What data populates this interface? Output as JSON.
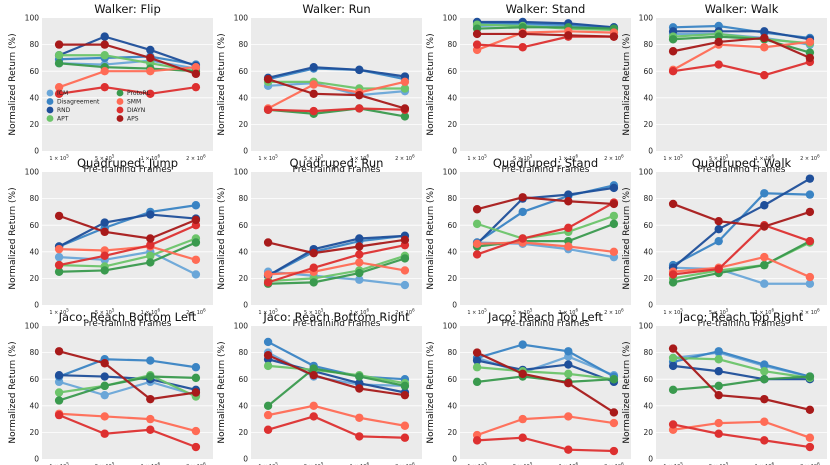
{
  "figure": {
    "legend": [
      "ICM",
      "Disagreement",
      "RND",
      "APT",
      "ProtoRL",
      "SMM",
      "DIAYN",
      "APS"
    ],
    "legend_placement": "lower-left of first panel"
  },
  "chart_data": [
    {
      "type": "line",
      "title": "Walker: Flip",
      "xlabel": "Pre-training Frames",
      "ylabel": "Normalized Return (%)",
      "categories": [
        "1 × 10^5",
        "5 × 10^5",
        "1 × 10^6",
        "2 × 10^6"
      ],
      "ylim": [
        0,
        100
      ],
      "grid": true,
      "series": [
        {
          "name": "ICM",
          "values": [
            66,
            65,
            68,
            62
          ]
        },
        {
          "name": "Disagreement",
          "values": [
            69,
            70,
            71,
            65
          ]
        },
        {
          "name": "RND",
          "values": [
            72,
            86,
            76,
            64
          ]
        },
        {
          "name": "APT",
          "values": [
            72,
            72,
            66,
            60
          ]
        },
        {
          "name": "ProtoRL",
          "values": [
            66,
            63,
            62,
            60
          ]
        },
        {
          "name": "SMM",
          "values": [
            48,
            60,
            60,
            63
          ]
        },
        {
          "name": "DIAYN",
          "values": [
            43,
            48,
            43,
            48
          ]
        },
        {
          "name": "APS",
          "values": [
            80,
            80,
            70,
            58
          ]
        }
      ]
    },
    {
      "type": "line",
      "title": "Walker: Run",
      "xlabel": "Pre-training Frames",
      "ylabel": "Normalized Return (%)",
      "categories": [
        "1 × 10^5",
        "5 × 10^5",
        "1 × 10^6",
        "2 × 10^6"
      ],
      "ylim": [
        0,
        100
      ],
      "grid": true,
      "series": [
        {
          "name": "ICM",
          "values": [
            49,
            51,
            42,
            45
          ]
        },
        {
          "name": "Disagreement",
          "values": [
            54,
            62,
            61,
            54
          ]
        },
        {
          "name": "RND",
          "values": [
            55,
            63,
            61,
            56
          ]
        },
        {
          "name": "APT",
          "values": [
            52,
            52,
            47,
            47
          ]
        },
        {
          "name": "ProtoRL",
          "values": [
            31,
            28,
            32,
            26
          ]
        },
        {
          "name": "SMM",
          "values": [
            32,
            50,
            44,
            52
          ]
        },
        {
          "name": "DIAYN",
          "values": [
            31,
            30,
            32,
            31
          ]
        },
        {
          "name": "APS",
          "values": [
            54,
            43,
            42,
            32
          ]
        }
      ]
    },
    {
      "type": "line",
      "title": "Walker: Stand",
      "xlabel": "Pre-training Frames",
      "ylabel": "Normalized Return (%)",
      "categories": [
        "1 × 10^5",
        "5 × 10^5",
        "1 × 10^6",
        "2 × 10^6"
      ],
      "ylim": [
        0,
        100
      ],
      "grid": true,
      "series": [
        {
          "name": "ICM",
          "values": [
            94,
            95,
            94,
            92
          ]
        },
        {
          "name": "Disagreement",
          "values": [
            96,
            96,
            95,
            93
          ]
        },
        {
          "name": "RND",
          "values": [
            97,
            97,
            96,
            93
          ]
        },
        {
          "name": "APT",
          "values": [
            95,
            94,
            92,
            91
          ]
        },
        {
          "name": "ProtoRL",
          "values": [
            92,
            93,
            93,
            92
          ]
        },
        {
          "name": "SMM",
          "values": [
            76,
            89,
            90,
            89
          ]
        },
        {
          "name": "DIAYN",
          "values": [
            80,
            78,
            86,
            86
          ]
        },
        {
          "name": "APS",
          "values": [
            88,
            88,
            87,
            86
          ]
        }
      ]
    },
    {
      "type": "line",
      "title": "Walker: Walk",
      "xlabel": "Pre-training Frames",
      "ylabel": "Normalized Return (%)",
      "categories": [
        "1 × 10^5",
        "5 × 10^5",
        "1 × 10^6",
        "2 × 10^6"
      ],
      "ylim": [
        0,
        100
      ],
      "grid": true,
      "series": [
        {
          "name": "ICM",
          "values": [
            88,
            88,
            85,
            80
          ]
        },
        {
          "name": "Disagreement",
          "values": [
            93,
            94,
            89,
            85
          ]
        },
        {
          "name": "RND",
          "values": [
            90,
            90,
            90,
            84
          ]
        },
        {
          "name": "APT",
          "values": [
            86,
            88,
            84,
            81
          ]
        },
        {
          "name": "ProtoRL",
          "values": [
            84,
            86,
            84,
            74
          ]
        },
        {
          "name": "SMM",
          "values": [
            61,
            80,
            78,
            82
          ]
        },
        {
          "name": "DIAYN",
          "values": [
            60,
            65,
            57,
            67
          ]
        },
        {
          "name": "APS",
          "values": [
            75,
            82,
            85,
            70
          ]
        }
      ]
    },
    {
      "type": "line",
      "title": "Quadruped: Jump",
      "xlabel": "Pre-training Frames",
      "ylabel": "Normalized Return (%)",
      "categories": [
        "1 × 10^5",
        "5 × 10^5",
        "1 × 10^6",
        "2 × 10^6"
      ],
      "ylim": [
        0,
        100
      ],
      "grid": true,
      "series": [
        {
          "name": "ICM",
          "values": [
            36,
            34,
            40,
            23
          ]
        },
        {
          "name": "Disagreement",
          "values": [
            44,
            58,
            70,
            75
          ]
        },
        {
          "name": "RND",
          "values": [
            44,
            62,
            68,
            65
          ]
        },
        {
          "name": "APT",
          "values": [
            30,
            29,
            37,
            50
          ]
        },
        {
          "name": "ProtoRL",
          "values": [
            25,
            26,
            32,
            47
          ]
        },
        {
          "name": "SMM",
          "values": [
            42,
            41,
            44,
            34
          ]
        },
        {
          "name": "DIAYN",
          "values": [
            30,
            37,
            45,
            60
          ]
        },
        {
          "name": "APS",
          "values": [
            67,
            55,
            50,
            64
          ]
        }
      ]
    },
    {
      "type": "line",
      "title": "Quadruped: Run",
      "xlabel": "Pre-training Frames",
      "ylabel": "Normalized Return (%)",
      "categories": [
        "1 × 10^5",
        "5 × 10^5",
        "1 × 10^6",
        "2 × 10^6"
      ],
      "ylim": [
        0,
        100
      ],
      "grid": true,
      "series": [
        {
          "name": "ICM",
          "values": [
            25,
            22,
            19,
            15
          ]
        },
        {
          "name": "Disagreement",
          "values": [
            22,
            40,
            48,
            52
          ]
        },
        {
          "name": "RND",
          "values": [
            22,
            42,
            50,
            52
          ]
        },
        {
          "name": "APT",
          "values": [
            18,
            20,
            26,
            37
          ]
        },
        {
          "name": "ProtoRL",
          "values": [
            16,
            17,
            24,
            35
          ]
        },
        {
          "name": "SMM",
          "values": [
            23,
            25,
            32,
            26
          ]
        },
        {
          "name": "DIAYN",
          "values": [
            17,
            28,
            38,
            45
          ]
        },
        {
          "name": "APS",
          "values": [
            47,
            39,
            44,
            49
          ]
        }
      ]
    },
    {
      "type": "line",
      "title": "Quadruped: Stand",
      "xlabel": "Pre-training Frames",
      "ylabel": "Normalized Return (%)",
      "categories": [
        "1 × 10^5",
        "5 × 10^5",
        "1 × 10^6",
        "2 × 10^6"
      ],
      "ylim": [
        0,
        100
      ],
      "grid": true,
      "series": [
        {
          "name": "ICM",
          "values": [
            47,
            46,
            42,
            36
          ]
        },
        {
          "name": "Disagreement",
          "values": [
            47,
            70,
            82,
            90
          ]
        },
        {
          "name": "RND",
          "values": [
            46,
            80,
            83,
            88
          ]
        },
        {
          "name": "APT",
          "values": [
            61,
            50,
            55,
            67
          ]
        },
        {
          "name": "ProtoRL",
          "values": [
            44,
            48,
            48,
            61
          ]
        },
        {
          "name": "SMM",
          "values": [
            46,
            47,
            44,
            40
          ]
        },
        {
          "name": "DIAYN",
          "values": [
            38,
            50,
            58,
            77
          ]
        },
        {
          "name": "APS",
          "values": [
            72,
            81,
            78,
            76
          ]
        }
      ]
    },
    {
      "type": "line",
      "title": "Quadruped: Walk",
      "xlabel": "Pre-training Frames",
      "ylabel": "Normalized Return (%)",
      "categories": [
        "1 × 10^5",
        "5 × 10^5",
        "1 × 10^6",
        "2 × 10^6"
      ],
      "ylim": [
        0,
        100
      ],
      "grid": true,
      "series": [
        {
          "name": "ICM",
          "values": [
            28,
            27,
            16,
            16
          ]
        },
        {
          "name": "Disagreement",
          "values": [
            30,
            48,
            84,
            83
          ]
        },
        {
          "name": "RND",
          "values": [
            28,
            57,
            75,
            95
          ]
        },
        {
          "name": "APT",
          "values": [
            20,
            26,
            30,
            47
          ]
        },
        {
          "name": "ProtoRL",
          "values": [
            17,
            24,
            30,
            48
          ]
        },
        {
          "name": "SMM",
          "values": [
            25,
            28,
            36,
            21
          ]
        },
        {
          "name": "DIAYN",
          "values": [
            23,
            27,
            60,
            48
          ]
        },
        {
          "name": "APS",
          "values": [
            76,
            63,
            59,
            70
          ]
        }
      ]
    },
    {
      "type": "line",
      "title": "Jaco: Reach Bottom Left",
      "xlabel": "Pre-training Frames",
      "ylabel": "Normalized Return (%)",
      "categories": [
        "1 × 10^5",
        "5 × 10^5",
        "1 × 10^6",
        "2 × 10^6"
      ],
      "ylim": [
        0,
        100
      ],
      "grid": true,
      "series": [
        {
          "name": "ICM",
          "values": [
            58,
            48,
            58,
            48
          ]
        },
        {
          "name": "Disagreement",
          "values": [
            62,
            75,
            74,
            69
          ]
        },
        {
          "name": "RND",
          "values": [
            63,
            62,
            60,
            52
          ]
        },
        {
          "name": "APT",
          "values": [
            50,
            55,
            63,
            47
          ]
        },
        {
          "name": "ProtoRL",
          "values": [
            44,
            55,
            62,
            61
          ]
        },
        {
          "name": "SMM",
          "values": [
            34,
            32,
            30,
            21
          ]
        },
        {
          "name": "DIAYN",
          "values": [
            33,
            19,
            22,
            9
          ]
        },
        {
          "name": "APS",
          "values": [
            81,
            72,
            45,
            50
          ]
        }
      ]
    },
    {
      "type": "line",
      "title": "Jaco: Reach Bottom Right",
      "xlabel": "Pre-training Frames",
      "ylabel": "Normalized Return (%)",
      "categories": [
        "1 × 10^5",
        "5 × 10^5",
        "1 × 10^6",
        "2 × 10^6"
      ],
      "ylim": [
        0,
        100
      ],
      "grid": true,
      "series": [
        {
          "name": "ICM",
          "values": [
            80,
            62,
            56,
            55
          ]
        },
        {
          "name": "Disagreement",
          "values": [
            88,
            70,
            62,
            60
          ]
        },
        {
          "name": "RND",
          "values": [
            75,
            66,
            57,
            50
          ]
        },
        {
          "name": "APT",
          "values": [
            70,
            67,
            63,
            57
          ]
        },
        {
          "name": "ProtoRL",
          "values": [
            40,
            68,
            62,
            55
          ]
        },
        {
          "name": "SMM",
          "values": [
            33,
            40,
            31,
            25
          ]
        },
        {
          "name": "DIAYN",
          "values": [
            22,
            32,
            17,
            16
          ]
        },
        {
          "name": "APS",
          "values": [
            78,
            63,
            53,
            48
          ]
        }
      ]
    },
    {
      "type": "line",
      "title": "Jaco: Reach Top Left",
      "xlabel": "Pre-training Frames",
      "ylabel": "Normalized Return (%)",
      "categories": [
        "1 × 10^5",
        "5 × 10^5",
        "1 × 10^6",
        "2 × 10^6"
      ],
      "ylim": [
        0,
        100
      ],
      "grid": true,
      "series": [
        {
          "name": "ICM",
          "values": [
            76,
            65,
            77,
            63
          ]
        },
        {
          "name": "Disagreement",
          "values": [
            76,
            86,
            81,
            62
          ]
        },
        {
          "name": "RND",
          "values": [
            74,
            67,
            71,
            58
          ]
        },
        {
          "name": "APT",
          "values": [
            69,
            66,
            64,
            60
          ]
        },
        {
          "name": "ProtoRL",
          "values": [
            58,
            62,
            58,
            60
          ]
        },
        {
          "name": "SMM",
          "values": [
            18,
            30,
            32,
            27
          ]
        },
        {
          "name": "DIAYN",
          "values": [
            14,
            16,
            7,
            6
          ]
        },
        {
          "name": "APS",
          "values": [
            80,
            64,
            57,
            35
          ]
        }
      ]
    },
    {
      "type": "line",
      "title": "Jaco: Reach Top Right",
      "xlabel": "Pre-training Frames",
      "ylabel": "Normalized Return (%)",
      "categories": [
        "1 × 10^5",
        "5 × 10^5",
        "1 × 10^6",
        "2 × 10^6"
      ],
      "ylim": [
        0,
        100
      ],
      "grid": true,
      "series": [
        {
          "name": "ICM",
          "values": [
            76,
            80,
            70,
            62
          ]
        },
        {
          "name": "Disagreement",
          "values": [
            73,
            81,
            71,
            62
          ]
        },
        {
          "name": "RND",
          "values": [
            70,
            66,
            60,
            60
          ]
        },
        {
          "name": "APT",
          "values": [
            76,
            75,
            66,
            61
          ]
        },
        {
          "name": "ProtoRL",
          "values": [
            52,
            55,
            60,
            62
          ]
        },
        {
          "name": "SMM",
          "values": [
            22,
            27,
            28,
            16
          ]
        },
        {
          "name": "DIAYN",
          "values": [
            26,
            19,
            14,
            9
          ]
        },
        {
          "name": "APS",
          "values": [
            83,
            48,
            45,
            37
          ]
        }
      ]
    }
  ],
  "style": {
    "panel_bg": "#ebebeb",
    "grid_color": "#ffffff",
    "series_colors": [
      "#6aa6d8",
      "#3a84c4",
      "#1f4f9a",
      "#6cc46a",
      "#3a9a4e",
      "#ff6b55",
      "#dd3030",
      "#a81a1a"
    ],
    "xtick_labels": [
      {
        "m": "1 × 10",
        "e": "5"
      },
      {
        "m": "5 × 10",
        "e": "5"
      },
      {
        "m": "1 × 10",
        "e": "6"
      },
      {
        "m": "2 × 10",
        "e": "6"
      }
    ],
    "yticks": [
      0,
      20,
      40,
      60,
      80,
      100
    ]
  }
}
